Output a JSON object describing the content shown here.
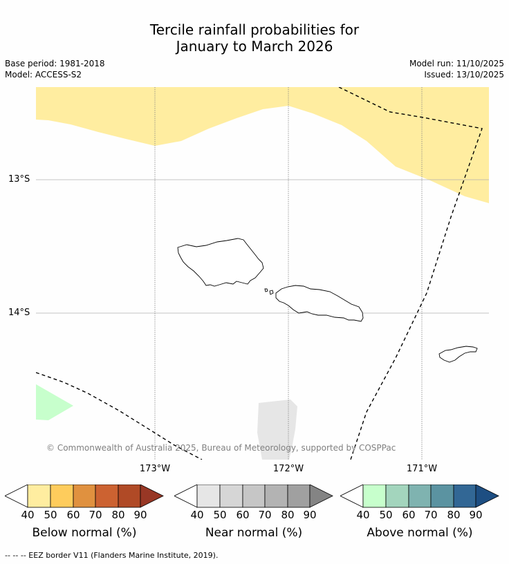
{
  "title": {
    "line1": "Tercile rainfall probabilities for",
    "line2": "January to March 2026"
  },
  "meta": {
    "base_period": "Base period: 1981-2018",
    "model": "Model: ACCESS-S2",
    "model_run": "Model run: 11/10/2025",
    "issued": "Issued: 13/10/2025"
  },
  "axes": {
    "lat_labels": [
      "13°S",
      "14°S"
    ],
    "lon_labels": [
      "173°W",
      "172°W",
      "171°W"
    ]
  },
  "map": {
    "land_color": "#ffffff",
    "below_color": "#ffeda0",
    "near_color": "#e6e6e6",
    "above_color": "#c7ffcc"
  },
  "copyright": "© Commonwealth of Australia 2025, Bureau of Meteorology, supported by COSPPac",
  "colorbars": [
    {
      "title": "Below normal (%)",
      "ticks": [
        "40",
        "50",
        "60",
        "70",
        "80",
        "90"
      ],
      "colors": [
        "#ffffff",
        "#ffeda0",
        "#fecc5c",
        "#e0913f",
        "#cc6231",
        "#b04a26",
        "#983725"
      ]
    },
    {
      "title": "Near normal (%)",
      "ticks": [
        "40",
        "50",
        "60",
        "70",
        "80",
        "90"
      ],
      "colors": [
        "#ffffff",
        "#e6e6e6",
        "#d6d6d6",
        "#c6c6c6",
        "#b3b3b3",
        "#a0a0a0",
        "#848484"
      ]
    },
    {
      "title": "Above normal (%)",
      "ticks": [
        "40",
        "50",
        "60",
        "70",
        "80",
        "90"
      ],
      "colors": [
        "#ffffff",
        "#c7ffcc",
        "#a3d5bd",
        "#7fb3b0",
        "#5b93a1",
        "#326795",
        "#1d4e82"
      ]
    }
  ],
  "footnote": "--  --  -- EEZ border V11 (Flanders Marine Institute, 2019)."
}
